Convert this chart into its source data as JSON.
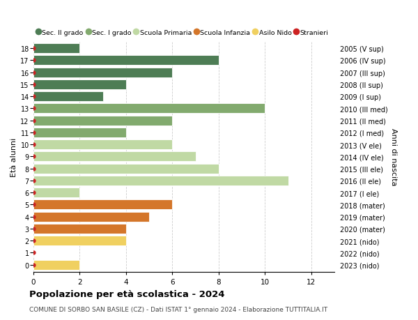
{
  "ages": [
    18,
    17,
    16,
    15,
    14,
    13,
    12,
    11,
    10,
    9,
    8,
    7,
    6,
    5,
    4,
    3,
    2,
    1,
    0
  ],
  "right_labels": [
    "2005 (V sup)",
    "2006 (IV sup)",
    "2007 (III sup)",
    "2008 (II sup)",
    "2009 (I sup)",
    "2010 (III med)",
    "2011 (II med)",
    "2012 (I med)",
    "2013 (V ele)",
    "2014 (IV ele)",
    "2015 (III ele)",
    "2016 (II ele)",
    "2017 (I ele)",
    "2018 (mater)",
    "2019 (mater)",
    "2020 (mater)",
    "2021 (nido)",
    "2022 (nido)",
    "2023 (nido)"
  ],
  "values": [
    2,
    8,
    6,
    4,
    3,
    10,
    6,
    4,
    6,
    7,
    8,
    11,
    2,
    6,
    5,
    4,
    4,
    0,
    2
  ],
  "bar_colors": [
    "#4e7d55",
    "#4e7d55",
    "#4e7d55",
    "#4e7d55",
    "#4e7d55",
    "#82aa6e",
    "#82aa6e",
    "#82aa6e",
    "#c0d9a4",
    "#c0d9a4",
    "#c0d9a4",
    "#c0d9a4",
    "#c0d9a4",
    "#d4762a",
    "#d4762a",
    "#d4762a",
    "#f0d060",
    "#f0d060",
    "#f0d060"
  ],
  "legend_labels": [
    "Sec. II grado",
    "Sec. I grado",
    "Scuola Primaria",
    "Scuola Infanzia",
    "Asilo Nido",
    "Stranieri"
  ],
  "legend_colors": [
    "#4e7d55",
    "#82aa6e",
    "#c0d9a4",
    "#d4762a",
    "#f0d060",
    "#cc2222"
  ],
  "ylabel": "Età alunni",
  "ylabel_right": "Anni di nascita",
  "title": "Popolazione per età scolastica - 2024",
  "subtitle": "COMUNE DI SORBO SAN BASILE (CZ) - Dati ISTAT 1° gennaio 2024 - Elaborazione TUTTITALIA.IT",
  "xlim": [
    0,
    13
  ],
  "xticks": [
    0,
    2,
    4,
    6,
    8,
    10,
    12
  ],
  "background_color": "#ffffff",
  "grid_color": "#cccccc"
}
